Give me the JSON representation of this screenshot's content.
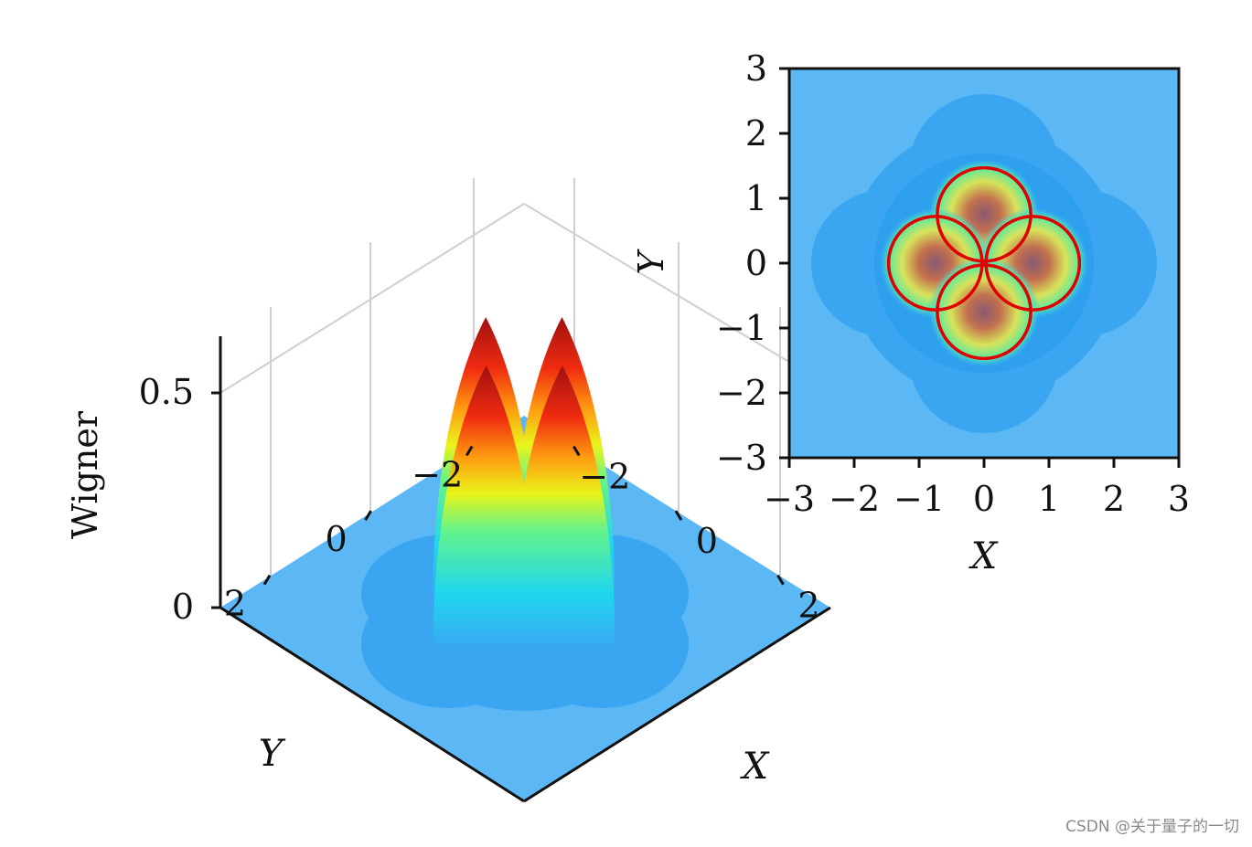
{
  "chart_data": [
    {
      "type": "surface3d",
      "zlabel": "Wigner",
      "xlabel": "X",
      "ylabel": "Y",
      "z_ticks": [
        0,
        0.5
      ],
      "z_tick_labels": [
        "0",
        "0.5"
      ],
      "x_ticks": [
        -2,
        0,
        2
      ],
      "x_tick_labels": [
        "−2",
        "0",
        "2"
      ],
      "y_ticks": [
        -2,
        0,
        2
      ],
      "y_tick_labels": [
        "−2",
        "0",
        "2"
      ],
      "peaks": [
        {
          "x": -0.75,
          "y": 0,
          "z": 0.62
        },
        {
          "x": 0.75,
          "y": 0,
          "z": 0.62
        },
        {
          "x": 0,
          "y": 0.75,
          "z": 0.62
        },
        {
          "x": 0,
          "y": -0.75,
          "z": 0.62
        }
      ],
      "peak_width": 0.5,
      "grid": true,
      "colormap": "jet",
      "colors": {
        "floor": "#5cb8f5",
        "plateau": "#3aa6f2",
        "peak": "#b01010"
      }
    },
    {
      "type": "heatmap",
      "xlabel": "X",
      "ylabel": "Y",
      "xlim": [
        -3,
        3
      ],
      "ylim": [
        -3,
        3
      ],
      "x_ticks": [
        -3,
        -2,
        -1,
        0,
        1,
        2,
        3
      ],
      "x_tick_labels": [
        "−3",
        "−2",
        "−1",
        "0",
        "1",
        "2",
        "3"
      ],
      "y_ticks": [
        -3,
        -2,
        -1,
        0,
        1,
        2,
        3
      ],
      "y_tick_labels": [
        "−3",
        "−2",
        "−1",
        "0",
        "1",
        "2",
        "3"
      ],
      "peaks": [
        {
          "x": 0,
          "y": 0.75
        },
        {
          "x": 0.75,
          "y": 0
        },
        {
          "x": -0.75,
          "y": 0
        },
        {
          "x": 0,
          "y": -0.75
        }
      ],
      "circles": [
        {
          "cx": 0,
          "cy": 0.75,
          "r": 0.72
        },
        {
          "cx": 0.75,
          "cy": 0,
          "r": 0.72
        },
        {
          "cx": -0.75,
          "cy": 0,
          "r": 0.72
        },
        {
          "cx": 0,
          "cy": -0.75,
          "r": 0.72
        }
      ],
      "colormap": "jet",
      "colors": {
        "background": "#5cb8f5",
        "circle": "#e00000"
      }
    }
  ],
  "watermark": "CSDN @关于量子的一切"
}
